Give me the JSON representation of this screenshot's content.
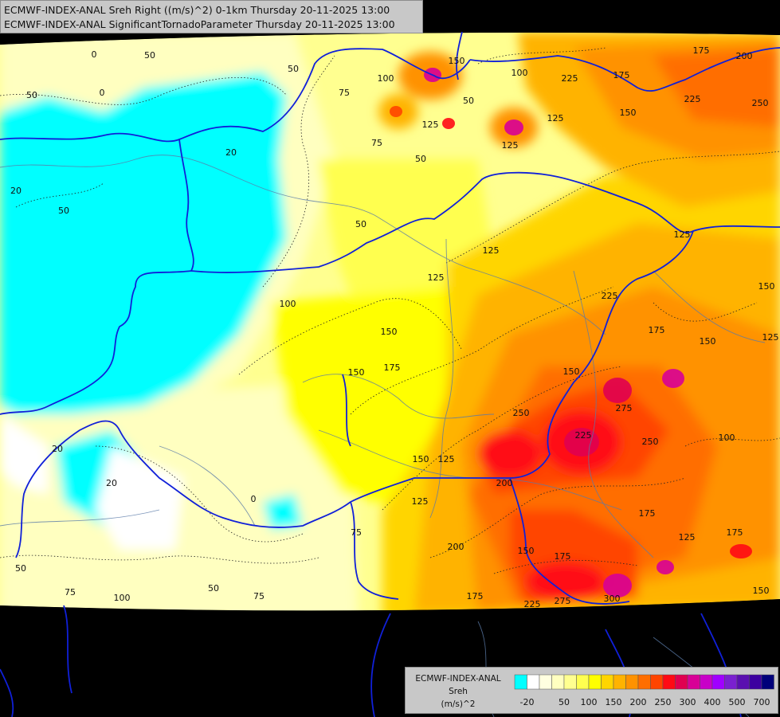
{
  "header": {
    "line1": "ECMWF-INDEX-ANAL Sreh Right ((m/s)^2) 0-1km Thursday 20-11-2025 13:00",
    "line2": "ECMWF-INDEX-ANAL SignificantTornadoParameter Thursday 20-11-2025 13:00"
  },
  "legend": {
    "model": "ECMWF-INDEX-ANAL",
    "variable": "Sreh",
    "unit": "(m/s)^2",
    "colors": [
      "#00ffff",
      "#ffffff",
      "#ffffe0",
      "#ffffc0",
      "#ffff90",
      "#ffff50",
      "#ffff00",
      "#ffd500",
      "#ffb300",
      "#ff9200",
      "#ff6e00",
      "#ff4400",
      "#ff0a14",
      "#e00050",
      "#d80096",
      "#c800c8",
      "#a000ff",
      "#7a20d0",
      "#5a10b0",
      "#3c00a0",
      "#00007a"
    ],
    "tick_labels": [
      "-20",
      "50",
      "100",
      "150",
      "200",
      "250",
      "300",
      "400",
      "500",
      "700"
    ]
  },
  "map_labels": {
    "items": [
      [
        "0",
        118,
        72
      ],
      [
        "50",
        188,
        73
      ],
      [
        "50",
        368,
        90
      ],
      [
        "75",
        432,
        120
      ],
      [
        "100",
        484,
        102
      ],
      [
        "150",
        573,
        80
      ],
      [
        "100",
        652,
        95
      ],
      [
        "225",
        715,
        102
      ],
      [
        "175",
        780,
        98
      ],
      [
        "175",
        880,
        67
      ],
      [
        "200",
        934,
        74
      ],
      [
        "225",
        869,
        128
      ],
      [
        "250",
        954,
        133
      ],
      [
        "0",
        128,
        120
      ],
      [
        "50",
        588,
        130
      ],
      [
        "125",
        540,
        160
      ],
      [
        "125",
        640,
        186
      ],
      [
        "125",
        697,
        152
      ],
      [
        "150",
        788,
        145
      ],
      [
        "75",
        473,
        183
      ],
      [
        "50",
        528,
        203
      ],
      [
        "20",
        290,
        195
      ],
      [
        "20",
        20,
        243
      ],
      [
        "50",
        80,
        268
      ],
      [
        "50",
        40,
        123
      ],
      [
        "50",
        453,
        285
      ],
      [
        "125",
        616,
        318
      ],
      [
        "125",
        547,
        352
      ],
      [
        "125",
        856,
        298
      ],
      [
        "100",
        361,
        385
      ],
      [
        "150",
        488,
        420
      ],
      [
        "225",
        765,
        375
      ],
      [
        "150",
        962,
        363
      ],
      [
        "175",
        824,
        418
      ],
      [
        "150",
        888,
        432
      ],
      [
        "125",
        967,
        427
      ],
      [
        "175",
        492,
        465
      ],
      [
        "150",
        447,
        471
      ],
      [
        "150",
        717,
        470
      ],
      [
        "250",
        654,
        522
      ],
      [
        "275",
        783,
        516
      ],
      [
        "225",
        732,
        550
      ],
      [
        "250",
        816,
        558
      ],
      [
        "100",
        912,
        553
      ],
      [
        "20",
        72,
        567
      ],
      [
        "150",
        528,
        580
      ],
      [
        "125",
        560,
        580
      ],
      [
        "20",
        140,
        610
      ],
      [
        "0",
        318,
        630
      ],
      [
        "200",
        633,
        610
      ],
      [
        "125",
        527,
        633
      ],
      [
        "175",
        812,
        648
      ],
      [
        "125",
        862,
        678
      ],
      [
        "175",
        922,
        672
      ],
      [
        "200",
        572,
        690
      ],
      [
        "150",
        660,
        695
      ],
      [
        "175",
        706,
        702
      ],
      [
        "50",
        26,
        717
      ],
      [
        "75",
        88,
        747
      ],
      [
        "100",
        153,
        754
      ],
      [
        "50",
        268,
        742
      ],
      [
        "75",
        325,
        752
      ],
      [
        "175",
        596,
        752
      ],
      [
        "225",
        668,
        762
      ],
      [
        "275",
        706,
        758
      ],
      [
        "300",
        768,
        755
      ],
      [
        "150",
        955,
        745
      ],
      [
        "75",
        447,
        672
      ]
    ]
  }
}
